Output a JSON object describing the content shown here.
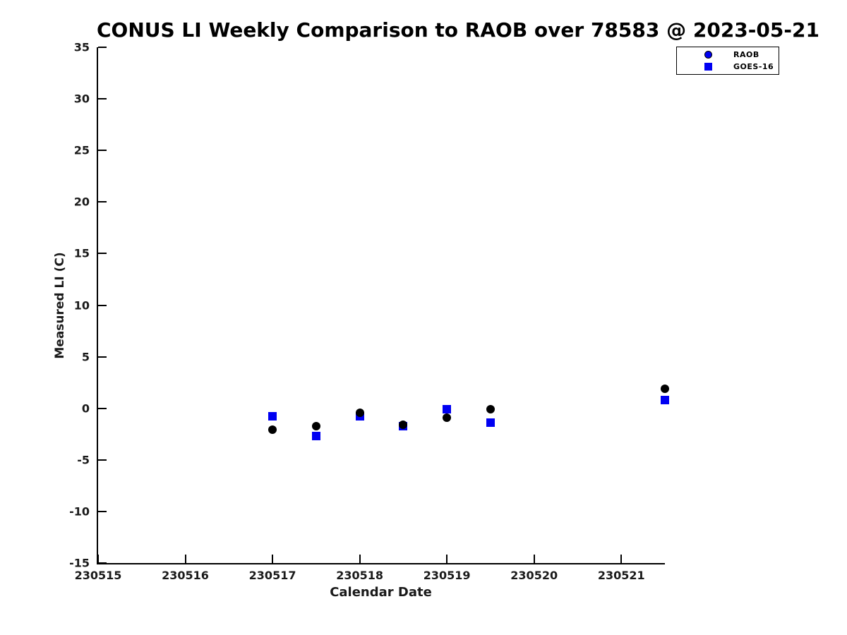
{
  "title": "CONUS LI Weekly Comparison to RAOB over 78583 @ 2023-05-21",
  "colors": {
    "marker_blue": "#0000f2",
    "marker_black": "#000000",
    "axis": "#000000",
    "background": "#ffffff"
  },
  "chart_data": {
    "type": "scatter",
    "title": "CONUS LI Weekly Comparison to RAOB over 78583 @ 2023-05-21",
    "xlabel": "Calendar Date",
    "ylabel": "Measured LI (C)",
    "xlim": [
      230515,
      230521.5
    ],
    "ylim": [
      -15,
      35
    ],
    "x_ticks": [
      230515,
      230516,
      230517,
      230518,
      230519,
      230520,
      230521
    ],
    "y_ticks": [
      35,
      30,
      25,
      20,
      15,
      10,
      5,
      0,
      -5,
      -10,
      -15
    ],
    "grid": false,
    "legend_position": "top-right-outside",
    "series": [
      {
        "name": "RAOB",
        "marker": "circle",
        "plot_color": "#000000",
        "legend_fill": "#0000f2",
        "points": [
          [
            230517.0,
            -2.1
          ],
          [
            230517.5,
            -1.7
          ],
          [
            230518.0,
            -0.4
          ],
          [
            230518.5,
            -1.6
          ],
          [
            230519.0,
            -0.9
          ],
          [
            230519.5,
            -0.1
          ],
          [
            230521.5,
            1.9
          ]
        ]
      },
      {
        "name": "GOES-16",
        "marker": "square",
        "plot_color": "#0000f2",
        "legend_fill": "#0000f2",
        "points": [
          [
            230517.0,
            -0.8
          ],
          [
            230517.5,
            -2.7
          ],
          [
            230518.0,
            -0.8
          ],
          [
            230518.5,
            -1.7
          ],
          [
            230519.0,
            -0.1
          ],
          [
            230519.5,
            -1.4
          ],
          [
            230521.5,
            0.8
          ]
        ]
      }
    ]
  }
}
